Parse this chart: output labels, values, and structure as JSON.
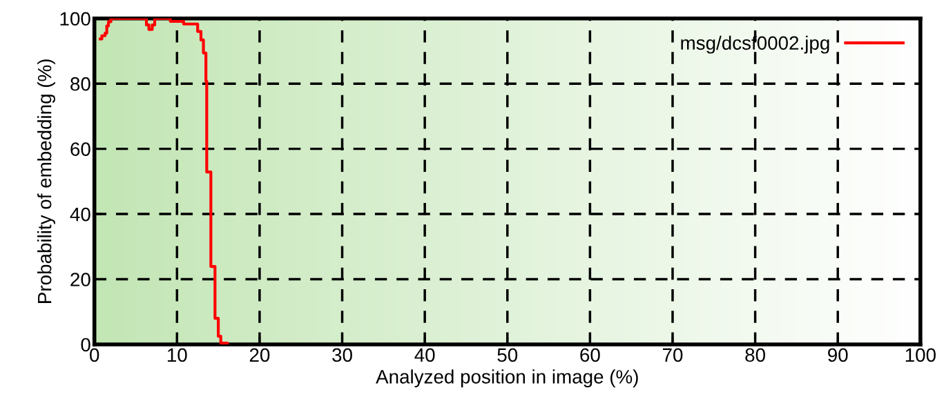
{
  "chart_data": {
    "type": "step",
    "xlabel": "Analyzed position in image (%)",
    "ylabel": "Probability of embedding (%)",
    "series": [
      {
        "name": "msg/dcsf0002.jpg",
        "color": "#ff0000",
        "x": [
          0.7,
          0.9,
          1.3,
          1.5,
          1.7,
          2.0,
          6.3,
          6.6,
          7.0,
          7.3,
          9.2,
          10.8,
          12.5,
          12.9,
          13.2,
          13.5,
          13.6,
          14.1,
          14.6,
          15.0,
          15.3,
          16.1
        ],
        "values": [
          93.7,
          94.7,
          95.5,
          97.7,
          99,
          100,
          98,
          96.6,
          98,
          100,
          99.1,
          98.3,
          96,
          93.4,
          89.4,
          80.8,
          52.9,
          23.9,
          8,
          2.5,
          0.4,
          0
        ]
      }
    ],
    "xlim": [
      0,
      100
    ],
    "xticks": [
      0,
      10,
      20,
      30,
      40,
      50,
      60,
      70,
      80,
      90,
      100
    ],
    "ylim": [
      0,
      100
    ],
    "yticks": [
      0,
      20,
      40,
      60,
      80,
      100
    ],
    "grid": true,
    "legend": "top right",
    "line_style": "solid",
    "marker": "none"
  }
}
